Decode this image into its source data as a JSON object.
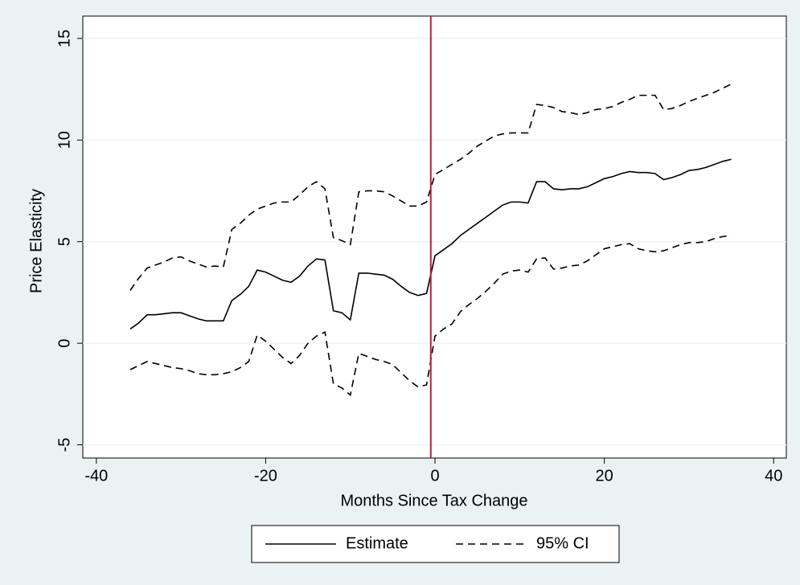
{
  "chart_data": {
    "type": "line",
    "x_label": "Months Since Tax Change",
    "y_label": "Price Elasticity",
    "x": [
      -36,
      -35,
      -34,
      -33,
      -32,
      -31,
      -30,
      -29,
      -28,
      -27,
      -26,
      -25,
      -24,
      -23,
      -22,
      -21,
      -20,
      -19,
      -18,
      -17,
      -16,
      -15,
      -14,
      -13,
      -12,
      -11,
      -10,
      -9,
      -8,
      -7,
      -6,
      -5,
      -4,
      -3,
      -2,
      -1,
      0,
      1,
      2,
      3,
      4,
      5,
      6,
      7,
      8,
      9,
      10,
      11,
      12,
      13,
      14,
      15,
      16,
      17,
      18,
      19,
      20,
      21,
      22,
      23,
      24,
      25,
      26,
      27,
      28,
      29,
      30,
      31,
      32,
      33,
      34,
      35
    ],
    "series": [
      {
        "name": "Estimate",
        "color": "#000000",
        "style": "solid",
        "values": [
          0.7,
          1.0,
          1.4,
          1.4,
          1.45,
          1.5,
          1.5,
          1.35,
          1.2,
          1.1,
          1.1,
          1.1,
          2.1,
          2.4,
          2.8,
          3.6,
          3.5,
          3.3,
          3.1,
          3.0,
          3.3,
          3.8,
          4.15,
          4.1,
          1.6,
          1.5,
          1.15,
          3.45,
          3.45,
          3.4,
          3.35,
          3.15,
          2.8,
          2.5,
          2.35,
          2.45,
          4.3,
          4.6,
          4.9,
          5.3,
          5.6,
          5.9,
          6.2,
          6.5,
          6.8,
          6.95,
          6.95,
          6.9,
          7.95,
          7.95,
          7.6,
          7.55,
          7.6,
          7.6,
          7.7,
          7.9,
          8.1,
          8.2,
          8.35,
          8.45,
          8.4,
          8.4,
          8.35,
          8.05,
          8.15,
          8.3,
          8.5,
          8.55,
          8.65,
          8.8,
          8.95,
          9.05
        ]
      },
      {
        "name": "95% CI",
        "color": "#000000",
        "style": "dashed",
        "upper": [
          2.6,
          3.2,
          3.7,
          3.85,
          4.0,
          4.2,
          4.25,
          4.05,
          3.9,
          3.75,
          3.8,
          3.75,
          5.6,
          5.9,
          6.3,
          6.6,
          6.75,
          6.9,
          6.95,
          6.95,
          7.3,
          7.7,
          7.95,
          7.6,
          5.2,
          5.05,
          4.85,
          7.45,
          7.5,
          7.5,
          7.45,
          7.25,
          7.0,
          6.75,
          6.75,
          6.95,
          8.3,
          8.55,
          8.8,
          9.05,
          9.35,
          9.7,
          9.95,
          10.2,
          10.3,
          10.35,
          10.35,
          10.35,
          11.75,
          11.7,
          11.6,
          11.4,
          11.35,
          11.25,
          11.35,
          11.5,
          11.55,
          11.65,
          11.85,
          12.0,
          12.2,
          12.2,
          12.2,
          11.5,
          11.55,
          11.7,
          11.9,
          12.05,
          12.2,
          12.35,
          12.55,
          12.75
        ],
        "lower": [
          -1.3,
          -1.1,
          -0.9,
          -1.0,
          -1.1,
          -1.2,
          -1.25,
          -1.35,
          -1.5,
          -1.55,
          -1.55,
          -1.5,
          -1.4,
          -1.2,
          -0.9,
          0.4,
          0.1,
          -0.3,
          -0.7,
          -1.0,
          -0.6,
          0.0,
          0.35,
          0.55,
          -2.0,
          -2.2,
          -2.55,
          -0.5,
          -0.65,
          -0.8,
          -0.9,
          -1.05,
          -1.45,
          -1.85,
          -2.15,
          -2.05,
          0.35,
          0.7,
          0.95,
          1.55,
          1.9,
          2.2,
          2.55,
          2.95,
          3.4,
          3.55,
          3.6,
          3.5,
          4.15,
          4.2,
          3.65,
          3.7,
          3.8,
          3.85,
          4.05,
          4.35,
          4.65,
          4.75,
          4.85,
          4.9,
          4.65,
          4.55,
          4.5,
          4.55,
          4.7,
          4.85,
          4.95,
          4.95,
          5.0,
          5.15,
          5.25,
          5.3
        ]
      }
    ],
    "vline": {
      "x": -0.5,
      "color": "#b0203c"
    },
    "xlim": [
      -41.6,
      41.5
    ],
    "xticks": [
      -40,
      -20,
      0,
      20,
      40
    ],
    "ylim": [
      -5.65,
      16.1
    ],
    "yticks": [
      -5,
      0,
      5,
      10,
      15
    ],
    "grid": true,
    "legend": "bottom"
  }
}
